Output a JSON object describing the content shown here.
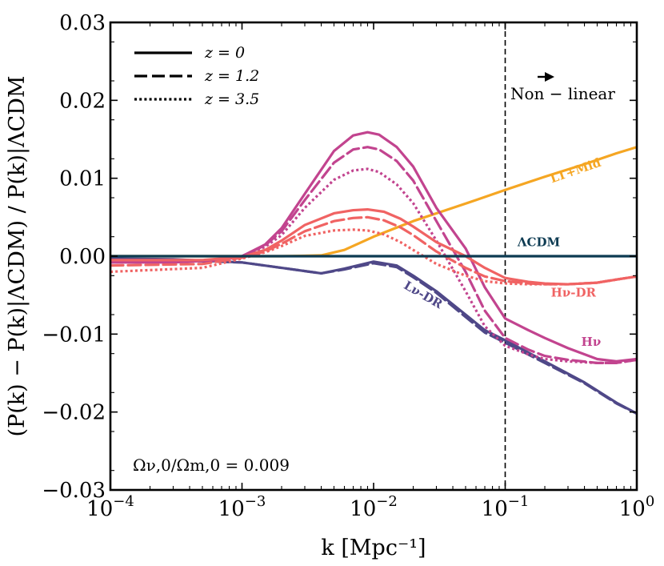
{
  "chart_data": {
    "type": "line",
    "xscale": "log",
    "xlim": [
      0.0001,
      1
    ],
    "ylim": [
      -0.03,
      0.03
    ],
    "xlabel": "k [Mpc⁻¹]",
    "ylabel": "(P(k) − P(k)|ΛCDM) / P(k)|ΛCDM",
    "xticks": [
      {
        "value": 0.0001,
        "base": "10",
        "exp": "−4"
      },
      {
        "value": 0.001,
        "base": "10",
        "exp": "−3"
      },
      {
        "value": 0.01,
        "base": "10",
        "exp": "−2"
      },
      {
        "value": 0.1,
        "base": "10",
        "exp": "−1"
      },
      {
        "value": 1,
        "base": "10",
        "exp": "0"
      }
    ],
    "yticks": [
      {
        "value": 0.03,
        "label": "0.03"
      },
      {
        "value": 0.02,
        "label": "0.02"
      },
      {
        "value": 0.01,
        "label": "0.01"
      },
      {
        "value": 0.0,
        "label": "0.00"
      },
      {
        "value": -0.01,
        "label": "−0.01"
      },
      {
        "value": -0.02,
        "label": "−0.02"
      },
      {
        "value": -0.03,
        "label": "−0.03"
      }
    ],
    "legend": [
      {
        "label": "z = 0",
        "style": "solid"
      },
      {
        "label": "z = 1.2",
        "style": "dashed"
      },
      {
        "label": "z = 3.5",
        "style": "dotted"
      }
    ],
    "annotations": {
      "omega_ratio": "Ων,0/Ωm,0 = 0.009",
      "nonlinear_text": "Non − linear",
      "nonlinear_k": 0.1
    },
    "model_labels": [
      {
        "text": "LT+Mid",
        "color": "#f5a623",
        "k": 0.35,
        "y": 0.0105,
        "rotate": -19
      },
      {
        "text": "ΛCDM",
        "color": "#0d3b52",
        "k": 0.18,
        "y": 0.0013,
        "rotate": 0
      },
      {
        "text": "Hν-DR",
        "color": "#f06363",
        "k": 0.33,
        "y": -0.0052,
        "rotate": 0
      },
      {
        "text": "Hν",
        "color": "#c2448f",
        "k": 0.45,
        "y": -0.0115,
        "rotate": 0
      },
      {
        "text": "Lν-DR",
        "color": "#4f4888",
        "k": 0.023,
        "y": -0.0054,
        "rotate": 30
      }
    ],
    "series": [
      {
        "name": "ΛCDM",
        "color": "#0d3b52",
        "style": "solid",
        "width": 3.2,
        "k": [
          0.0001,
          1
        ],
        "y": [
          0.0,
          0.0
        ]
      },
      {
        "name": "LT+Mid",
        "color": "#f5a623",
        "style": "solid",
        "width": 3.2,
        "k": [
          0.0001,
          0.001,
          0.002,
          0.004,
          0.006,
          0.01,
          0.02,
          0.04,
          0.06,
          0.1,
          0.2,
          0.4,
          0.7,
          1.0
        ],
        "y": [
          0.0,
          0.0,
          0.0,
          0.0001,
          0.0008,
          0.0025,
          0.0045,
          0.0062,
          0.0072,
          0.0085,
          0.0102,
          0.0118,
          0.0132,
          0.014
        ]
      },
      {
        "name": "Lν-DR z=0",
        "color": "#4f4888",
        "style": "solid",
        "width": 3.2,
        "k": [
          0.0001,
          0.0003,
          0.001,
          0.002,
          0.004,
          0.006,
          0.01,
          0.015,
          0.02,
          0.03,
          0.05,
          0.07,
          0.1,
          0.2,
          0.4,
          0.7,
          1.0
        ],
        "y": [
          -0.0003,
          -0.0004,
          -0.0008,
          -0.0015,
          -0.0022,
          -0.0016,
          -0.0007,
          -0.0012,
          -0.0025,
          -0.0045,
          -0.0075,
          -0.0095,
          -0.0108,
          -0.0135,
          -0.0162,
          -0.0188,
          -0.0202
        ]
      },
      {
        "name": "Lν-DR z=1.2",
        "color": "#4f4888",
        "style": "dashed",
        "width": 3.2,
        "k": [
          0.0001,
          0.001,
          0.002,
          0.004,
          0.006,
          0.01,
          0.015,
          0.02,
          0.03,
          0.05,
          0.07,
          0.1,
          0.2,
          0.4,
          0.7,
          1.0
        ],
        "y": [
          -0.0003,
          -0.0008,
          -0.0015,
          -0.0022,
          -0.0017,
          -0.0009,
          -0.0014,
          -0.0027,
          -0.0047,
          -0.0078,
          -0.0098,
          -0.0111,
          -0.0137,
          -0.0163,
          -0.0189,
          -0.0202
        ]
      },
      {
        "name": "Hν z=0",
        "color": "#c2448f",
        "style": "solid",
        "width": 3.2,
        "k": [
          0.0001,
          0.0003,
          0.0007,
          0.001,
          0.0015,
          0.002,
          0.003,
          0.005,
          0.007,
          0.009,
          0.011,
          0.015,
          0.02,
          0.03,
          0.05,
          0.07,
          0.1,
          0.15,
          0.2,
          0.3,
          0.5,
          0.7,
          1.0
        ],
        "y": [
          -0.0008,
          -0.0008,
          -0.0005,
          0.0,
          0.0015,
          0.0036,
          0.008,
          0.0135,
          0.0155,
          0.0159,
          0.0156,
          0.014,
          0.0115,
          0.0062,
          0.001,
          -0.004,
          -0.008,
          -0.0095,
          -0.0105,
          -0.0118,
          -0.0132,
          -0.0135,
          -0.0132
        ]
      },
      {
        "name": "Hν z=1.2",
        "color": "#c2448f",
        "style": "dashed",
        "width": 3.2,
        "k": [
          0.0001,
          0.0007,
          0.001,
          0.0015,
          0.002,
          0.003,
          0.005,
          0.007,
          0.009,
          0.011,
          0.015,
          0.02,
          0.03,
          0.05,
          0.07,
          0.1,
          0.15,
          0.2,
          0.3,
          0.5,
          0.7,
          1.0
        ],
        "y": [
          -0.0008,
          -0.0005,
          0.0,
          0.0014,
          0.0032,
          0.0072,
          0.012,
          0.0137,
          0.014,
          0.0137,
          0.0122,
          0.0097,
          0.0045,
          -0.002,
          -0.007,
          -0.0105,
          -0.012,
          -0.0128,
          -0.0133,
          -0.0137,
          -0.0137,
          -0.0133
        ]
      },
      {
        "name": "Hν z=3.5",
        "color": "#c2448f",
        "style": "dotted",
        "width": 3.2,
        "k": [
          0.0001,
          0.0007,
          0.001,
          0.0015,
          0.002,
          0.003,
          0.005,
          0.007,
          0.009,
          0.011,
          0.015,
          0.02,
          0.03,
          0.05,
          0.07,
          0.1,
          0.15,
          0.2,
          0.3,
          0.5,
          0.7,
          1.0
        ],
        "y": [
          -0.0008,
          -0.0005,
          0.0,
          0.0012,
          0.0027,
          0.0062,
          0.0098,
          0.011,
          0.0112,
          0.0108,
          0.0092,
          0.0068,
          0.002,
          -0.0045,
          -0.009,
          -0.0115,
          -0.0126,
          -0.0132,
          -0.0135,
          -0.0137,
          -0.0137,
          -0.0133
        ]
      },
      {
        "name": "Hν-DR z=0",
        "color": "#f06363",
        "style": "solid",
        "width": 3.2,
        "k": [
          0.0001,
          0.0005,
          0.001,
          0.0015,
          0.002,
          0.003,
          0.005,
          0.007,
          0.009,
          0.012,
          0.016,
          0.02,
          0.03,
          0.05,
          0.07,
          0.1,
          0.15,
          0.2,
          0.3,
          0.5,
          0.7,
          1.0
        ],
        "y": [
          -0.0005,
          -0.0005,
          -0.0001,
          0.0008,
          0.002,
          0.004,
          0.0055,
          0.0059,
          0.006,
          0.0057,
          0.0048,
          0.0038,
          0.0018,
          0.0,
          -0.0015,
          -0.0028,
          -0.0033,
          -0.0035,
          -0.0036,
          -0.0034,
          -0.003,
          -0.0026
        ]
      },
      {
        "name": "Hν-DR z=1.2",
        "color": "#f06363",
        "style": "dashed",
        "width": 3.2,
        "k": [
          0.0001,
          0.0005,
          0.001,
          0.0015,
          0.002,
          0.003,
          0.005,
          0.007,
          0.009,
          0.012,
          0.016,
          0.02,
          0.03,
          0.05,
          0.07,
          0.1,
          0.15,
          0.2,
          0.3,
          0.5,
          0.7,
          1.0
        ],
        "y": [
          -0.0012,
          -0.001,
          -0.0002,
          0.0006,
          0.0016,
          0.0032,
          0.0045,
          0.0049,
          0.005,
          0.0046,
          0.0037,
          0.0027,
          0.0006,
          -0.0015,
          -0.0026,
          -0.0032,
          -0.0035,
          -0.0036,
          -0.0036,
          -0.0034,
          -0.003,
          -0.0026
        ]
      },
      {
        "name": "Hν-DR z=3.5",
        "color": "#f06363",
        "style": "dotted",
        "width": 3.2,
        "k": [
          0.0001,
          0.0005,
          0.001,
          0.0015,
          0.002,
          0.003,
          0.005,
          0.007,
          0.009,
          0.012,
          0.016,
          0.02,
          0.03,
          0.05,
          0.07,
          0.1,
          0.15,
          0.2,
          0.3,
          0.5,
          0.7,
          1.0
        ],
        "y": [
          -0.002,
          -0.0015,
          -0.0003,
          0.0005,
          0.0013,
          0.0026,
          0.0033,
          0.0034,
          0.0033,
          0.0028,
          0.0018,
          0.0008,
          -0.001,
          -0.0025,
          -0.0032,
          -0.0035,
          -0.0036,
          -0.0036,
          -0.0036,
          -0.0034,
          -0.003,
          -0.0026
        ]
      }
    ]
  }
}
